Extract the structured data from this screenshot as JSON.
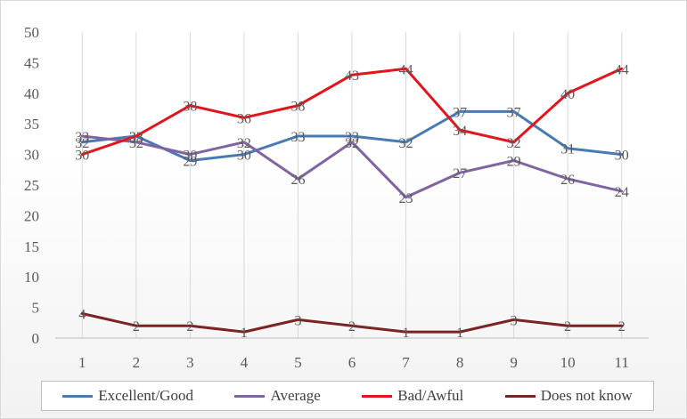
{
  "chart_data": {
    "type": "line",
    "x": [
      1,
      2,
      3,
      4,
      5,
      6,
      7,
      8,
      9,
      10,
      11
    ],
    "ylim": [
      0,
      50
    ],
    "yticks": [
      0,
      5,
      10,
      15,
      20,
      25,
      30,
      35,
      40,
      45,
      50
    ],
    "grid": "vertical",
    "legend": "bottom",
    "series": [
      {
        "name": "Excellent/Good",
        "color": "#4a7ab5",
        "values": [
          32,
          33,
          29,
          30,
          33,
          33,
          32,
          37,
          37,
          31,
          30
        ]
      },
      {
        "name": "Average",
        "color": "#8064a2",
        "values": [
          33,
          32,
          30,
          32,
          26,
          32,
          23,
          27,
          29,
          26,
          24
        ]
      },
      {
        "name": "Bad/Awful",
        "color": "#e3141b",
        "values": [
          30,
          33,
          38,
          36,
          38,
          43,
          44,
          34,
          32,
          40,
          44
        ]
      },
      {
        "name": "Does not know",
        "color": "#7b2424",
        "values": [
          4,
          2,
          2,
          1,
          3,
          2,
          1,
          1,
          3,
          2,
          2
        ]
      }
    ]
  }
}
